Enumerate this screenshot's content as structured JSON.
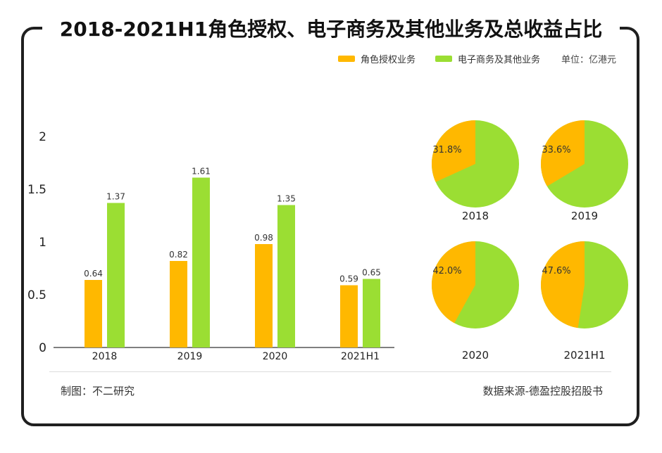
{
  "title": "2018-2021H1角色授权、电子商务及其他业务及总收益占比",
  "legend": {
    "items": [
      {
        "label": "角色授权业务",
        "color": "#FFB800"
      },
      {
        "label": "电子商务及其他业务",
        "color": "#9BDE33"
      }
    ],
    "unit": "单位：亿港元"
  },
  "footer": {
    "left": "制图：不二研究",
    "right": "数据来源-德盈控股招股书"
  },
  "chart_data": [
    {
      "type": "bar",
      "categories": [
        "2018",
        "2019",
        "2020",
        "2021H1"
      ],
      "series": [
        {
          "name": "角色授权业务",
          "values": [
            0.64,
            0.82,
            0.98,
            0.59
          ],
          "labels": [
            "0.64",
            "0.82",
            "0.98",
            "0.59"
          ],
          "color": "#FFB800"
        },
        {
          "name": "电子商务及其他业务",
          "values": [
            1.37,
            1.61,
            1.35,
            0.65
          ],
          "labels": [
            "1.37",
            "1.61",
            "1.35",
            "0.65"
          ],
          "color": "#9BDE33"
        }
      ],
      "ylim": [
        0,
        2
      ],
      "yticks": [
        0,
        0.5,
        1,
        1.5,
        2
      ],
      "ytick_labels": [
        "0",
        "0.5",
        "1",
        "1.5",
        "2"
      ],
      "grid": false
    },
    {
      "type": "pie",
      "pies": [
        {
          "label": "2018",
          "share": 31.8,
          "share_label": "31.8%"
        },
        {
          "label": "2019",
          "share": 33.6,
          "share_label": "33.6%"
        },
        {
          "label": "2020",
          "share": 42.0,
          "share_label": "42.0%"
        },
        {
          "label": "2021H1",
          "share": 47.6,
          "share_label": "47.6%"
        }
      ],
      "colors": {
        "share": "#FFB800",
        "rest": "#9BDE33"
      }
    }
  ]
}
